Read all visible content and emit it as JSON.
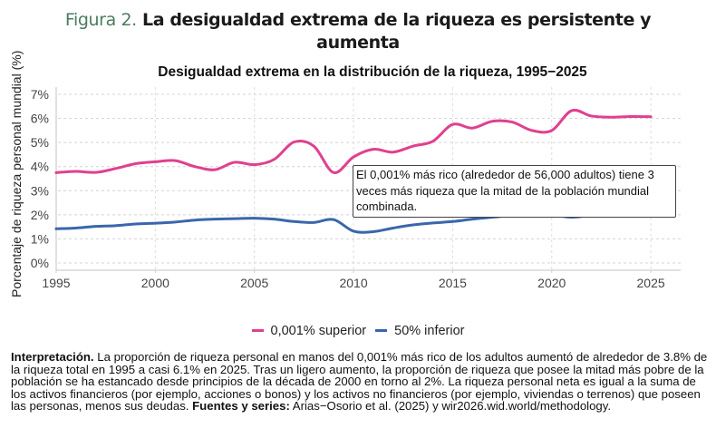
{
  "figure": {
    "number": "Figura 2.",
    "title_line1": "La desigualdad extrema de la riqueza es persistente y",
    "title_line2": "aumenta"
  },
  "colors": {
    "top": "#e0408f",
    "bottom": "#3a66ad",
    "figure_number": "#4b7b5f"
  },
  "chart_data": {
    "type": "line",
    "title": "Desigualdad extrema en la distribución de la riqueza, 1995−2025",
    "xlabel": "",
    "ylabel": "Porcentaje de riqueza personal mundial (%)",
    "xlim": [
      1995,
      2026.6
    ],
    "ylim": [
      -0.3,
      7.25
    ],
    "xticks": [
      1995,
      2000,
      2005,
      2010,
      2015,
      2020,
      2025
    ],
    "xtick_labels": [
      "1995",
      "2000",
      "2005",
      "2010",
      "2015",
      "2020",
      "2025"
    ],
    "yticks": [
      0,
      1,
      2,
      3,
      4,
      5,
      6,
      7
    ],
    "ytick_labels": [
      "0%",
      "1%",
      "2%",
      "3%",
      "4%",
      "5%",
      "6%",
      "7%"
    ],
    "grid": true,
    "legend_position": "bottom",
    "x": [
      1995,
      1996,
      1997,
      1998,
      1999,
      2000,
      2001,
      2002,
      2003,
      2004,
      2005,
      2006,
      2007,
      2008,
      2009,
      2010,
      2011,
      2012,
      2013,
      2014,
      2015,
      2016,
      2017,
      2018,
      2019,
      2020,
      2021,
      2022,
      2023,
      2024,
      2025
    ],
    "series": [
      {
        "name": "0,001% superior",
        "color": "#e0408f",
        "values": [
          3.75,
          3.8,
          3.76,
          3.92,
          4.12,
          4.2,
          4.25,
          4.0,
          3.87,
          4.18,
          4.08,
          4.3,
          5.02,
          4.85,
          3.75,
          4.4,
          4.72,
          4.6,
          4.85,
          5.05,
          5.75,
          5.6,
          5.88,
          5.85,
          5.5,
          5.5,
          6.32,
          6.1,
          6.05,
          6.08,
          6.07
        ]
      },
      {
        "name": "50% inferior",
        "color": "#3a66ad",
        "values": [
          1.42,
          1.45,
          1.52,
          1.55,
          1.62,
          1.65,
          1.7,
          1.78,
          1.82,
          1.84,
          1.86,
          1.82,
          1.72,
          1.68,
          1.8,
          1.32,
          1.3,
          1.45,
          1.58,
          1.66,
          1.72,
          1.82,
          1.9,
          1.98,
          2.08,
          2.0,
          1.9,
          1.98,
          2.03,
          2.0,
          2.02
        ]
      }
    ],
    "annotation": "El 0,001% más rico (alrededor de 56,000 adultos) tiene 3 veces más riqueza que la mitad de la población mundial combinada."
  },
  "interpretation": {
    "label": "Interpretación.",
    "text": " La proporción de riqueza personal en manos del 0,001% más rico de los adultos aumentó de alrededor de 3.8% de la riqueza total en 1995 a casi 6.1% en 2025. Tras un ligero aumento, la proporción de riqueza que posee la mitad más pobre de la población se ha estancado desde principios de la década de 2000 en torno al 2%. La riqueza personal neta es igual a la suma de los activos financieros (por ejemplo, acciones o bonos) y los activos no financieros (por ejemplo, viviendas o terrenos) que poseen las personas, menos sus deudas. ",
    "sources_label": "Fuentes y series:",
    "sources_text": " Arias−Osorio et al. (2025) y wir2026.wid.world/methodology."
  }
}
